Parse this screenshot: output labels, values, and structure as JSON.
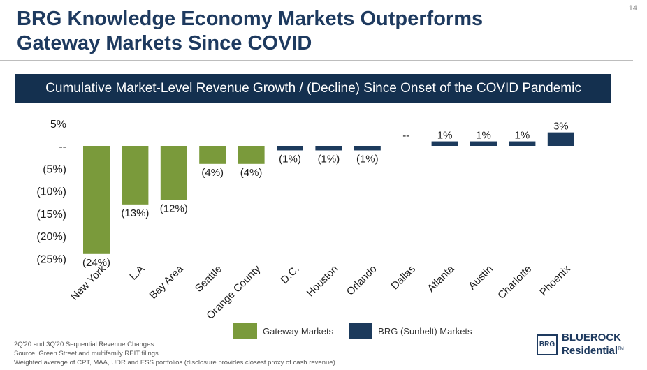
{
  "page_number": "14",
  "title_line1": "BRG Knowledge Economy Markets Outperforms",
  "title_line2": "Gateway Markets Since COVID",
  "banner": "Cumulative Market-Level Revenue Growth / (Decline) Since Onset of the COVID Pandemic",
  "colors": {
    "gateway": "#7a9a3b",
    "sunbelt": "#1c3a5c",
    "banner": "#14304f"
  },
  "chart_data": {
    "type": "bar",
    "categories": [
      "New York",
      "L.A",
      "Bay Area",
      "Seattle",
      "Orange County",
      "D.C.",
      "Houston",
      "Orlando",
      "Dallas",
      "Atlanta",
      "Austin",
      "Charlotte",
      "Phoenix"
    ],
    "values": [
      -24,
      -13,
      -12,
      -4,
      -4,
      -1,
      -1,
      -1,
      0,
      1,
      1,
      1,
      3
    ],
    "data_labels": [
      "(24%)",
      "(13%)",
      "(12%)",
      "(4%)",
      "(4%)",
      "(1%)",
      "(1%)",
      "(1%)",
      "--",
      "1%",
      "1%",
      "1%",
      "3%"
    ],
    "groups": [
      "gateway",
      "gateway",
      "gateway",
      "gateway",
      "gateway",
      "sunbelt",
      "sunbelt",
      "sunbelt",
      "sunbelt",
      "sunbelt",
      "sunbelt",
      "sunbelt",
      "sunbelt"
    ],
    "series": [
      {
        "name": "Gateway Markets",
        "key": "gateway"
      },
      {
        "name": "BRG (Sunbelt) Markets",
        "key": "sunbelt"
      }
    ],
    "yticks": [
      5,
      0,
      -5,
      -10,
      -15,
      -20,
      -25
    ],
    "ytick_labels": [
      "5%",
      "--",
      "(5%)",
      "(10%)",
      "(15%)",
      "(20%)",
      "(25%)"
    ],
    "ylim": [
      -25,
      5
    ],
    "grid": false,
    "legend": "bottom-center"
  },
  "footnotes": [
    "2Q'20 and 3Q'20 Sequential Revenue Changes.",
    "Source: Green Street and multifamily REIT filings.",
    "Weighted average of CPT, MAA, UDR and ESS portfolios (disclosure provides closest proxy of cash revenue)."
  ],
  "logo": {
    "mark": "BRG",
    "line1": "BLUEROCK",
    "line2": "Residential",
    "tm": "TM"
  }
}
